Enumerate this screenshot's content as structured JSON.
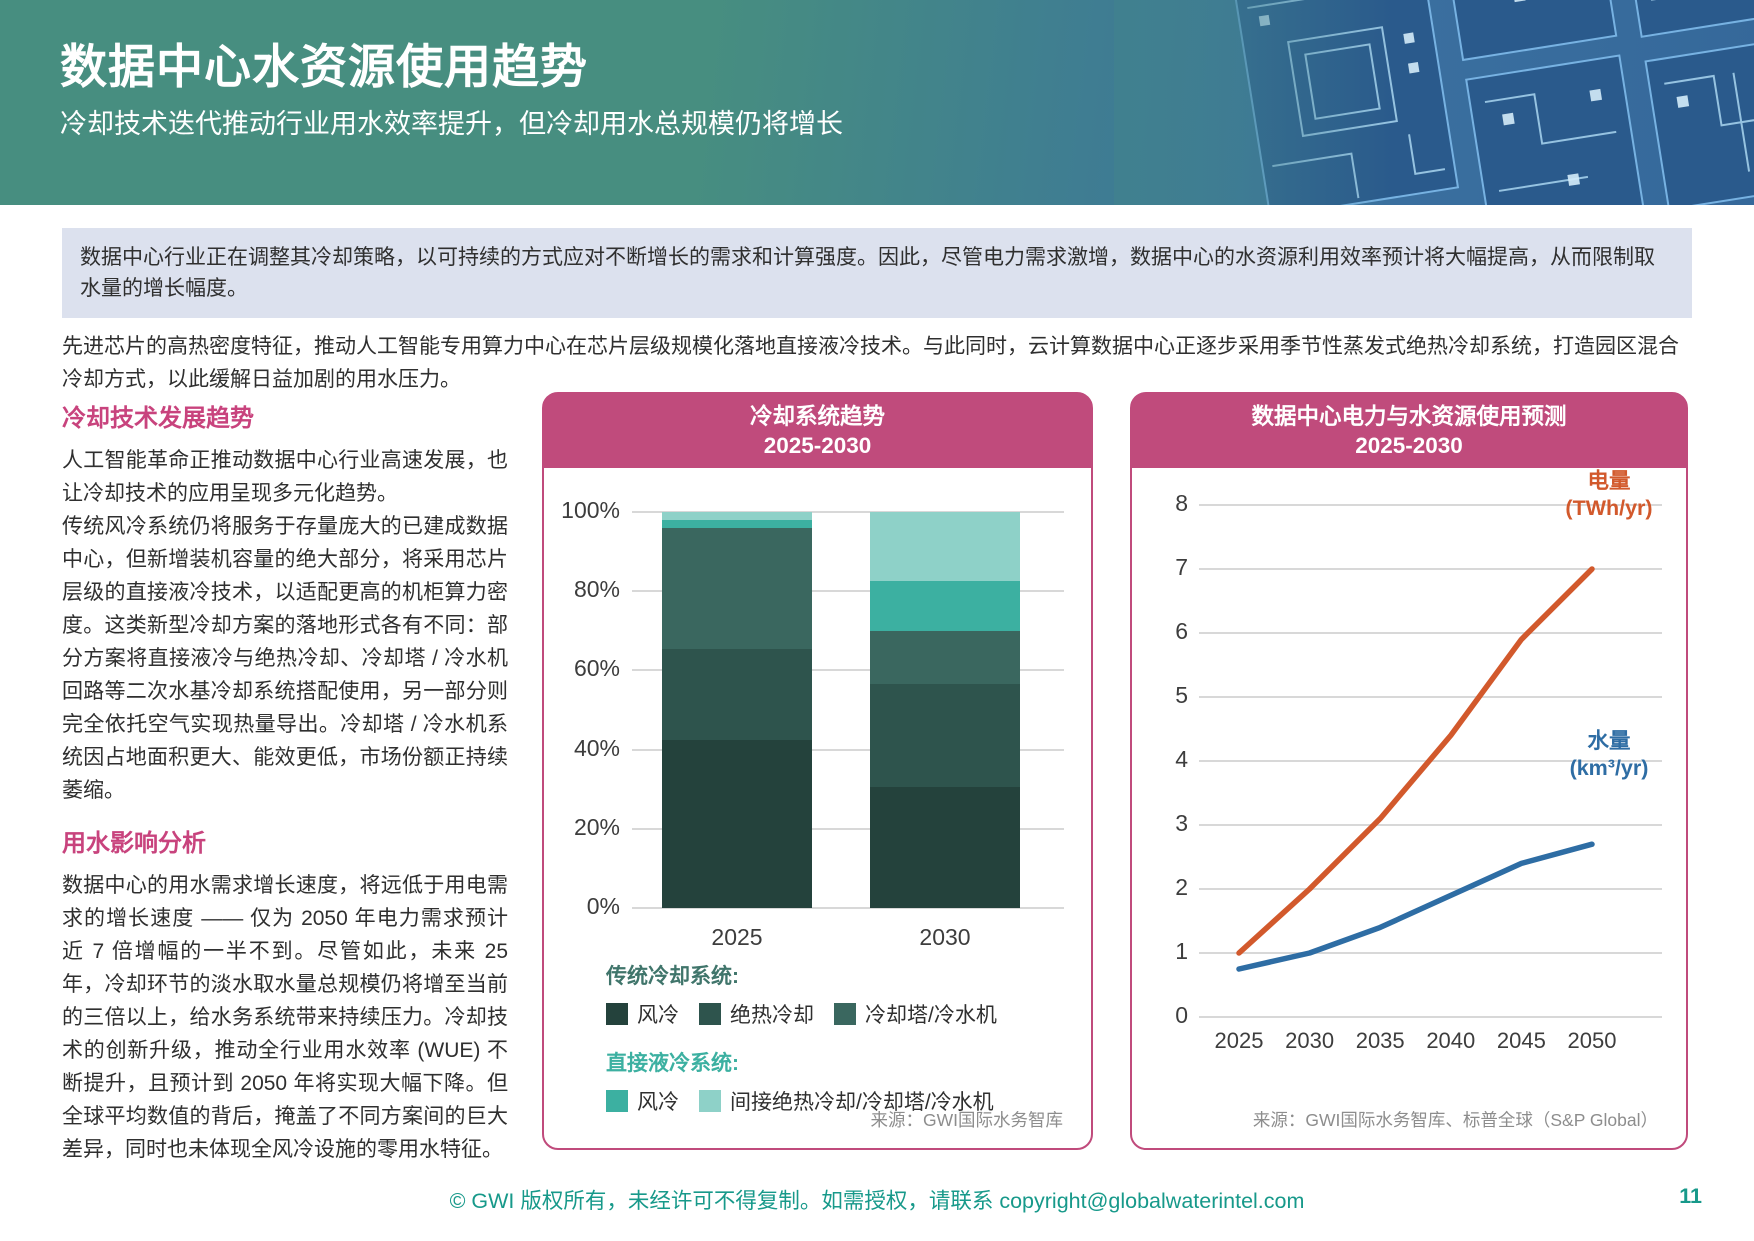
{
  "header": {
    "title": "数据中心水资源使用趋势",
    "subtitle": "冷却技术迭代推动行业用水效率提升，但冷却用水总规模仍将增长"
  },
  "callout": "数据中心行业正在调整其冷却策略，以可持续的方式应对不断增长的需求和计算强度。因此，尽管电力需求激增，数据中心的水资源利用效率预计将大幅提高，从而限制取水量的增长幅度。",
  "intro": "先进芯片的高热密度特征，推动人工智能专用算力中心在芯片层级规模化落地直接液冷技术。与此同时，云计算数据中心正逐步采用季节性蒸发式绝热冷却系统，打造园区混合冷却方式，以此缓解日益加剧的用水压力。",
  "left_column": {
    "sections": [
      {
        "heading": "冷却技术发展趋势",
        "paragraphs": [
          "人工智能革命正推动数据中心行业高速发展，也让冷却技术的应用呈现多元化趋势。",
          "传统风冷系统仍将服务于存量庞大的已建成数据中心，但新增装机容量的绝大部分，将采用芯片层级的直接液冷技术，以适配更高的机柜算力密度。这类新型冷却方案的落地形式各有不同：部分方案将直接液冷与绝热冷却、冷却塔 / 冷水机回路等二次水基冷却系统搭配使用，另一部分则完全依托空气实现热量导出。冷却塔 / 冷水机系统因占地面积更大、能效更低，市场份额正持续萎缩。"
        ]
      },
      {
        "heading": "用水影响分析",
        "paragraphs": [
          "数据中心的用水需求增长速度，将远低于用电需求的增长速度 —— 仅为 2050 年电力需求预计近 7 倍增幅的一半不到。尽管如此，未来 25 年，冷却环节的淡水取水量总规模仍将增至当前的三倍以上，给水务系统带来持续压力。冷却技术的创新升级，推动全行业用水效率 (WUE) 不断提升，且预计到 2050 年将实现大幅下降。但全球平均数值的背后，掩盖了不同方案间的巨大差异，同时也未体现全风冷设施的零用水特征。"
        ]
      }
    ]
  },
  "chart_data": [
    {
      "type": "bar",
      "stacked": true,
      "title": "冷却系统趋势",
      "subtitle": "2025-2030",
      "categories": [
        "2025",
        "2030"
      ],
      "series": [
        {
          "name": "风冷",
          "group": 0,
          "color": "#24423c",
          "values": [
            42.5,
            30.5
          ]
        },
        {
          "name": "绝热冷却",
          "group": 0,
          "color": "#2e544d",
          "values": [
            23,
            26
          ]
        },
        {
          "name": "冷却塔/冷水机",
          "group": 0,
          "color": "#3a675f",
          "values": [
            30.5,
            13.5
          ]
        },
        {
          "name": "风冷",
          "group": 1,
          "color": "#3cb0a1",
          "values": [
            2,
            12.5
          ]
        },
        {
          "name": "间接绝热冷却/冷却塔/冷水机",
          "group": 1,
          "color": "#8ed1c8",
          "values": [
            2,
            17.5
          ]
        }
      ],
      "legend_groups": [
        {
          "label": "传统冷却系统:",
          "title_color": "#40756b"
        },
        {
          "label": "直接液冷系统:",
          "title_color": "#3cb0a1"
        }
      ],
      "ylim": [
        0,
        100
      ],
      "yticks": [
        "0%",
        "20%",
        "40%",
        "60%",
        "80%",
        "100%"
      ],
      "grid": true,
      "source": "来源：GWI国际水务智库"
    },
    {
      "type": "line",
      "title": "数据中心电力与水资源使用预测",
      "subtitle": "2025-2030",
      "x": [
        "2025",
        "2030",
        "2035",
        "2040",
        "2045",
        "2050"
      ],
      "series": [
        {
          "name": "电量",
          "unit": "(TWh/yr)",
          "color": "#d2592c",
          "values": [
            1.0,
            2.0,
            3.1,
            4.4,
            5.9,
            7.0
          ]
        },
        {
          "name": "水量",
          "unit": "(km³/yr)",
          "color": "#2e6da4",
          "values": [
            0.75,
            1.0,
            1.4,
            1.9,
            2.4,
            2.7
          ]
        }
      ],
      "ylim": [
        0,
        8
      ],
      "yticks": [
        "0",
        "1",
        "2",
        "3",
        "4",
        "5",
        "6",
        "7",
        "8"
      ],
      "grid": true,
      "legend_position": "inline-labels",
      "source": "来源：GWI国际水务智库、标普全球（S&P Global）"
    }
  ],
  "footer": {
    "prefix": "© GWI 版权所有，未经许可不得复制。如需授权，请联系 ",
    "email": "copyright@globalwaterintel.com",
    "page_number": "11"
  }
}
